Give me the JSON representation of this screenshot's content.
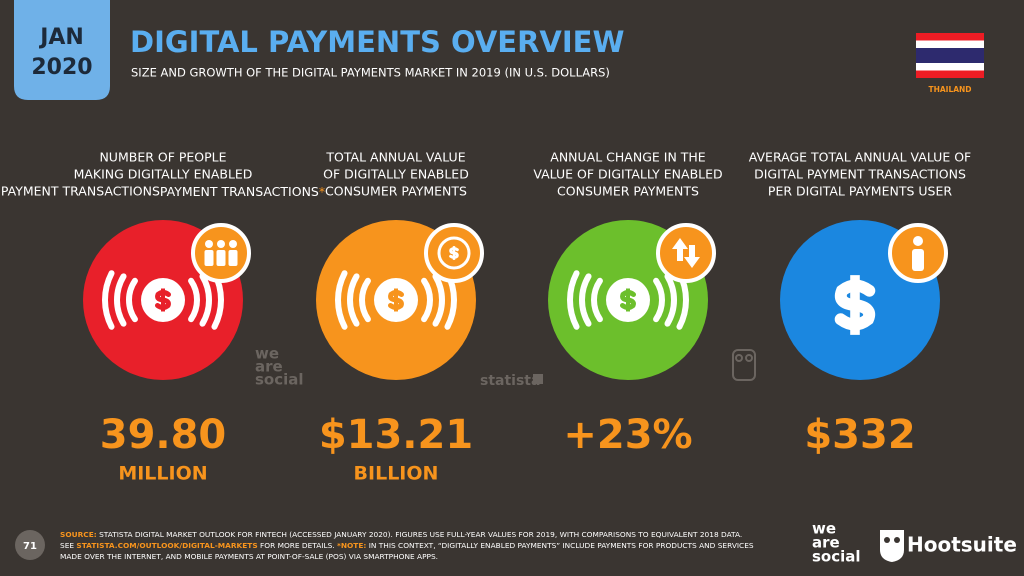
{
  "header": {
    "date_month": "JAN",
    "date_year": "2020",
    "title": "DIGITAL PAYMENTS OVERVIEW",
    "subtitle": "SIZE AND GROWTH OF THE DIGITAL PAYMENTS MARKET IN 2019 (IN U.S. DOLLARS)",
    "country": "THAILAND"
  },
  "stats": [
    {
      "label": [
        "NUMBER OF PEOPLE",
        "MAKING DIGITALLY ENABLED",
        "PAYMENT TRANSACTIONS"
      ],
      "note": "*",
      "value": "39.80",
      "unit": "MILLION",
      "color": "#e8202a"
    },
    {
      "label": [
        "TOTAL ANNUAL VALUE",
        "OF DIGITALLY ENABLED",
        "CONSUMER PAYMENTS"
      ],
      "value": "$13.21",
      "unit": "BILLION",
      "color": "#f7941d"
    },
    {
      "label": [
        "ANNUAL CHANGE IN THE",
        "VALUE OF DIGITALLY ENABLED",
        "CONSUMER PAYMENTS"
      ],
      "value": "+23%",
      "color": "#6cbf2c"
    },
    {
      "label": [
        "AVERAGE TOTAL ANNUAL VALUE OF",
        "DIGITAL PAYMENT TRANSACTIONS",
        "PER DIGITAL PAYMENTS USER"
      ],
      "value": "$332",
      "color": "#1b87e0"
    }
  ],
  "watermarks": {
    "we_are_social": [
      "we",
      "are",
      "social"
    ],
    "statista": "statista"
  },
  "footer": {
    "page": "71",
    "source": [
      [
        {
          "text": "SOURCE:",
          "accent": true
        },
        {
          "text": " STATISTA DIGITAL MARKET OUTLOOK FOR FINTECH (ACCESSED JANUARY 2020). FIGURES USE FULL-YEAR VALUES FOR 2019, WITH COMPARISONS TO EQUIVALENT 2018 DATA.",
          "accent": false
        }
      ],
      [
        {
          "text": "SEE ",
          "accent": false
        },
        {
          "text": "STATISTA.COM/OUTLOOK/DIGITAL-MARKETS",
          "accent": true
        },
        {
          "text": " FOR MORE DETAILS. ",
          "accent": false
        },
        {
          "text": "*NOTE:",
          "accent": true
        },
        {
          "text": " IN THIS CONTEXT, “DIGITALLY ENABLED PAYMENTS” INCLUDE PAYMENTS FOR PRODUCTS AND SERVICES",
          "accent": false
        }
      ],
      [
        {
          "text": "MADE OVER THE INTERNET, AND MOBILE PAYMENTS AT POINT-OF-SALE (POS) VIA SMARTPHONE APPS.",
          "accent": false
        }
      ]
    ],
    "logo_we_are_social": [
      "we",
      "are",
      "social"
    ],
    "logo_hootsuite": "Hootsuite"
  }
}
